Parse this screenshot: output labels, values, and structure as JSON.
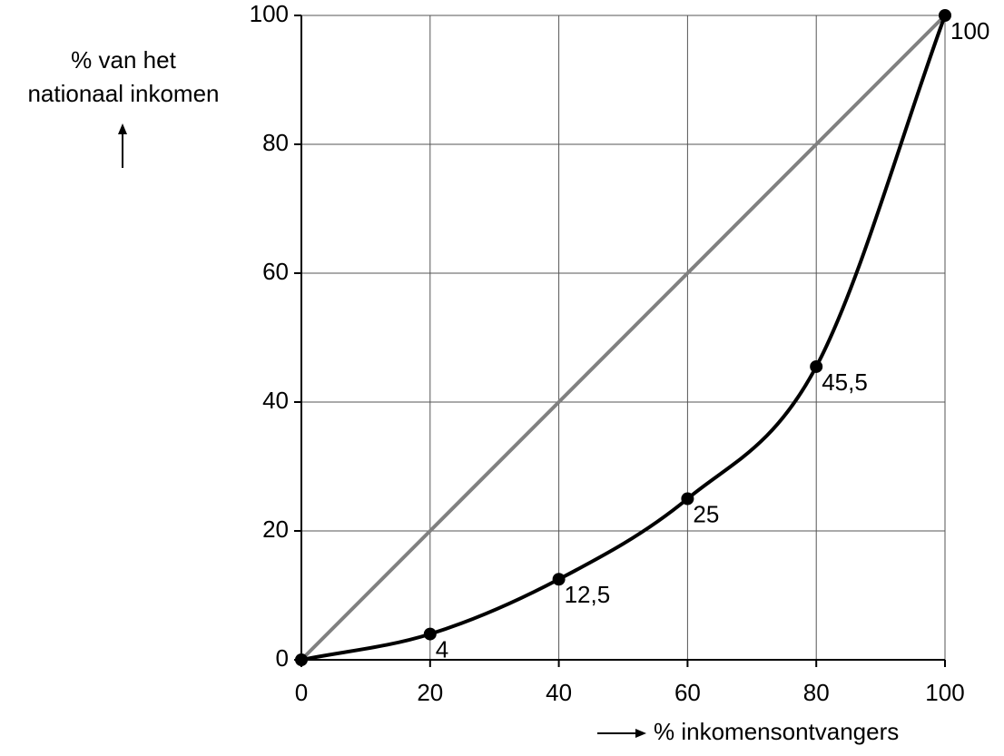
{
  "chart_data": {
    "type": "line",
    "x": [
      0,
      20,
      40,
      60,
      80,
      100
    ],
    "series": [
      {
        "color": "#808080",
        "values": [
          0,
          20,
          40,
          60,
          80,
          100
        ],
        "markers": false
      },
      {
        "color": "#000000",
        "values": [
          0,
          4,
          12.5,
          25,
          45.5,
          100
        ],
        "value_labels": [
          null,
          "4",
          "12,5",
          "25",
          "45,5",
          "100"
        ],
        "markers": true
      }
    ],
    "xlim": [
      0,
      100
    ],
    "xticks": [
      0,
      20,
      40,
      60,
      80,
      100
    ],
    "ylim": [
      0,
      100
    ],
    "yticks": [
      0,
      20,
      40,
      60,
      80,
      100
    ],
    "xlabel": "% inkomensontvangers",
    "ylabel": [
      "% van het",
      "nationaal inkomen"
    ],
    "grid": true
  }
}
